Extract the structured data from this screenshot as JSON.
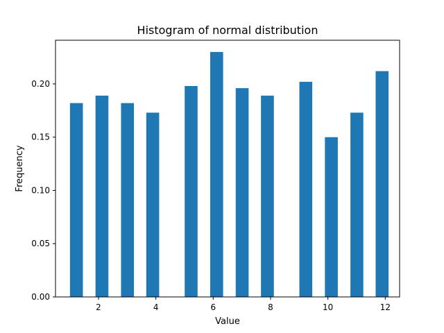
{
  "chart_data": {
    "type": "bar",
    "title": "Histogram of normal distribution",
    "xlabel": "Value",
    "ylabel": "Frequency",
    "x": [
      1.23,
      2.12,
      3.01,
      3.89,
      5.23,
      6.12,
      7.01,
      7.89,
      9.23,
      10.12,
      11.01,
      11.89
    ],
    "values": [
      0.182,
      0.189,
      0.182,
      0.173,
      0.198,
      0.23,
      0.196,
      0.189,
      0.202,
      0.15,
      0.173,
      0.212
    ],
    "bar_width": 0.45,
    "xlim": [
      0.5,
      12.5
    ],
    "ylim": [
      0,
      0.241
    ],
    "xticks": [
      2,
      4,
      6,
      8,
      10,
      12
    ],
    "xtick_labels": [
      "2",
      "4",
      "6",
      "8",
      "10",
      "12"
    ],
    "yticks": [
      0.0,
      0.05,
      0.1,
      0.15,
      0.2
    ],
    "ytick_labels": [
      "0.00",
      "0.05",
      "0.10",
      "0.15",
      "0.20"
    ],
    "bar_color": "#1f77b4",
    "grid": false,
    "legend": "none"
  }
}
